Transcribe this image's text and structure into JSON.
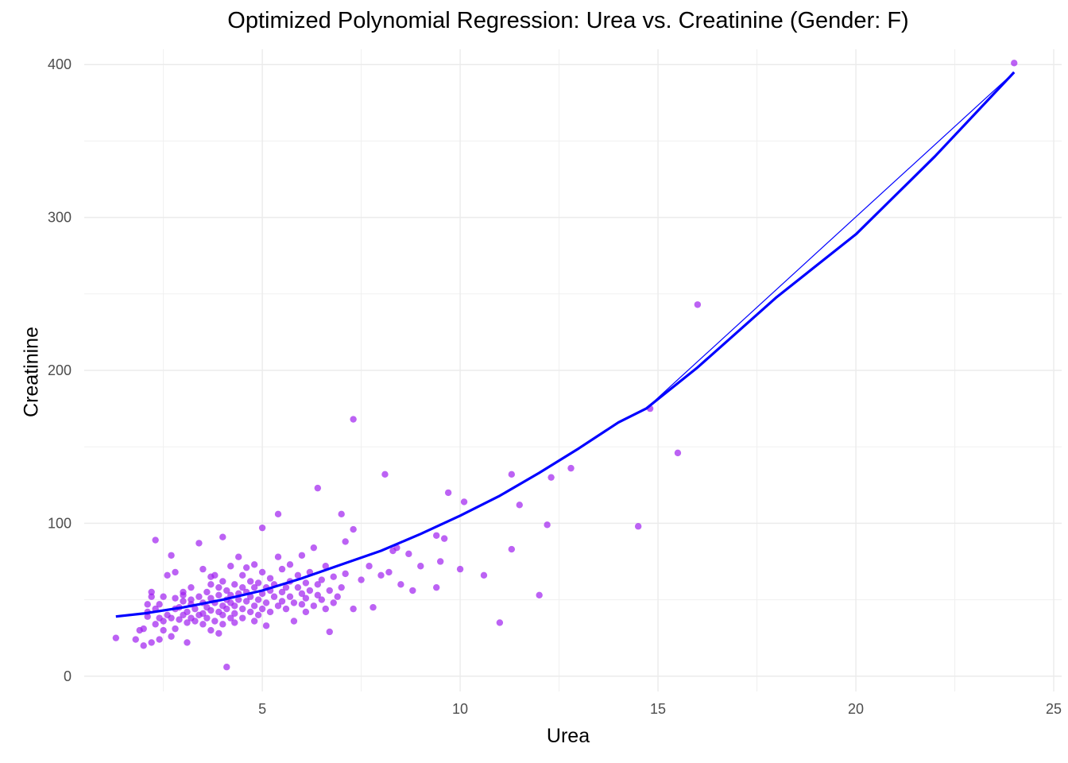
{
  "chart_data": {
    "type": "scatter",
    "title": "Optimized Polynomial Regression: Urea vs. Creatinine (Gender: F)",
    "xlabel": "Urea",
    "ylabel": "Creatinine",
    "xlim": [
      0.5,
      25.2
    ],
    "ylim": [
      -10,
      410
    ],
    "x_ticks": [
      5,
      10,
      15,
      20,
      25
    ],
    "y_ticks": [
      0,
      100,
      200,
      300,
      400
    ],
    "grid": true,
    "point_color": "#a020f0",
    "line_color": "#0000ff",
    "series": [
      {
        "type": "scatter",
        "points": [
          [
            1.3,
            25
          ],
          [
            1.8,
            24
          ],
          [
            1.9,
            30
          ],
          [
            2.0,
            20
          ],
          [
            2.0,
            31
          ],
          [
            2.1,
            47
          ],
          [
            2.1,
            39
          ],
          [
            2.1,
            42
          ],
          [
            2.2,
            22
          ],
          [
            2.2,
            52
          ],
          [
            2.2,
            55
          ],
          [
            2.3,
            34
          ],
          [
            2.3,
            44
          ],
          [
            2.3,
            89
          ],
          [
            2.4,
            24
          ],
          [
            2.4,
            38
          ],
          [
            2.4,
            47
          ],
          [
            2.5,
            36
          ],
          [
            2.5,
            52
          ],
          [
            2.5,
            30
          ],
          [
            2.6,
            40
          ],
          [
            2.6,
            66
          ],
          [
            2.7,
            26
          ],
          [
            2.7,
            38
          ],
          [
            2.7,
            79
          ],
          [
            2.8,
            31
          ],
          [
            2.8,
            44
          ],
          [
            2.8,
            51
          ],
          [
            2.8,
            68
          ],
          [
            2.9,
            37
          ],
          [
            2.9,
            45
          ],
          [
            3.0,
            40
          ],
          [
            3.0,
            49
          ],
          [
            3.0,
            53
          ],
          [
            3.0,
            55
          ],
          [
            3.1,
            35
          ],
          [
            3.1,
            22
          ],
          [
            3.1,
            42
          ],
          [
            3.2,
            50
          ],
          [
            3.2,
            47
          ],
          [
            3.2,
            38
          ],
          [
            3.2,
            58
          ],
          [
            3.3,
            44
          ],
          [
            3.3,
            36
          ],
          [
            3.4,
            52
          ],
          [
            3.4,
            40
          ],
          [
            3.4,
            87
          ],
          [
            3.5,
            48
          ],
          [
            3.5,
            34
          ],
          [
            3.5,
            41
          ],
          [
            3.5,
            70
          ],
          [
            3.6,
            45
          ],
          [
            3.6,
            38
          ],
          [
            3.6,
            55
          ],
          [
            3.7,
            51
          ],
          [
            3.7,
            60
          ],
          [
            3.7,
            43
          ],
          [
            3.7,
            65
          ],
          [
            3.7,
            30
          ],
          [
            3.8,
            36
          ],
          [
            3.8,
            48
          ],
          [
            3.8,
            66
          ],
          [
            3.9,
            42
          ],
          [
            3.9,
            58
          ],
          [
            3.9,
            28
          ],
          [
            3.9,
            53
          ],
          [
            4.0,
            46
          ],
          [
            4.0,
            40
          ],
          [
            4.0,
            62
          ],
          [
            4.0,
            34
          ],
          [
            4.0,
            91
          ],
          [
            4.1,
            50
          ],
          [
            4.1,
            44
          ],
          [
            4.1,
            56
          ],
          [
            4.1,
            6
          ],
          [
            4.2,
            38
          ],
          [
            4.2,
            53
          ],
          [
            4.2,
            48
          ],
          [
            4.2,
            72
          ],
          [
            4.3,
            41
          ],
          [
            4.3,
            60
          ],
          [
            4.3,
            46
          ],
          [
            4.3,
            35
          ],
          [
            4.4,
            54
          ],
          [
            4.4,
            50
          ],
          [
            4.4,
            78
          ],
          [
            4.5,
            44
          ],
          [
            4.5,
            58
          ],
          [
            4.5,
            66
          ],
          [
            4.5,
            38
          ],
          [
            4.6,
            49
          ],
          [
            4.6,
            55
          ],
          [
            4.6,
            71
          ],
          [
            4.7,
            42
          ],
          [
            4.7,
            52
          ],
          [
            4.7,
            62
          ],
          [
            4.8,
            46
          ],
          [
            4.8,
            58
          ],
          [
            4.8,
            36
          ],
          [
            4.8,
            73
          ],
          [
            4.9,
            50
          ],
          [
            4.9,
            61
          ],
          [
            4.9,
            40
          ],
          [
            5.0,
            54
          ],
          [
            5.0,
            44
          ],
          [
            5.0,
            97
          ],
          [
            5.0,
            68
          ],
          [
            5.1,
            48
          ],
          [
            5.1,
            58
          ],
          [
            5.1,
            33
          ],
          [
            5.2,
            56
          ],
          [
            5.2,
            42
          ],
          [
            5.2,
            64
          ],
          [
            5.3,
            52
          ],
          [
            5.3,
            60
          ],
          [
            5.4,
            46
          ],
          [
            5.4,
            78
          ],
          [
            5.4,
            106
          ],
          [
            5.5,
            55
          ],
          [
            5.5,
            70
          ],
          [
            5.5,
            49
          ],
          [
            5.6,
            58
          ],
          [
            5.6,
            44
          ],
          [
            5.7,
            62
          ],
          [
            5.7,
            52
          ],
          [
            5.7,
            73
          ],
          [
            5.8,
            48
          ],
          [
            5.8,
            36
          ],
          [
            5.9,
            58
          ],
          [
            5.9,
            66
          ],
          [
            6.0,
            47
          ],
          [
            6.0,
            54
          ],
          [
            6.0,
            79
          ],
          [
            6.1,
            51
          ],
          [
            6.1,
            61
          ],
          [
            6.1,
            42
          ],
          [
            6.2,
            56
          ],
          [
            6.2,
            68
          ],
          [
            6.3,
            46
          ],
          [
            6.3,
            84
          ],
          [
            6.4,
            53
          ],
          [
            6.4,
            60
          ],
          [
            6.4,
            123
          ],
          [
            6.5,
            50
          ],
          [
            6.5,
            63
          ],
          [
            6.6,
            44
          ],
          [
            6.6,
            72
          ],
          [
            6.7,
            56
          ],
          [
            6.7,
            29
          ],
          [
            6.8,
            65
          ],
          [
            6.8,
            48
          ],
          [
            6.9,
            52
          ],
          [
            7.0,
            58
          ],
          [
            7.0,
            106
          ],
          [
            7.1,
            88
          ],
          [
            7.1,
            67
          ],
          [
            7.3,
            96
          ],
          [
            7.3,
            44
          ],
          [
            7.3,
            168
          ],
          [
            7.5,
            63
          ],
          [
            7.7,
            72
          ],
          [
            7.8,
            45
          ],
          [
            8.0,
            66
          ],
          [
            8.1,
            132
          ],
          [
            8.2,
            68
          ],
          [
            8.3,
            82
          ],
          [
            8.4,
            84
          ],
          [
            8.5,
            60
          ],
          [
            8.7,
            80
          ],
          [
            8.8,
            56
          ],
          [
            9.0,
            72
          ],
          [
            9.4,
            92
          ],
          [
            9.4,
            58
          ],
          [
            9.5,
            75
          ],
          [
            9.6,
            90
          ],
          [
            9.7,
            120
          ],
          [
            10.0,
            70
          ],
          [
            10.1,
            114
          ],
          [
            10.6,
            66
          ],
          [
            11.0,
            35
          ],
          [
            11.3,
            132
          ],
          [
            11.3,
            83
          ],
          [
            11.5,
            112
          ],
          [
            12.0,
            53
          ],
          [
            12.2,
            99
          ],
          [
            12.3,
            130
          ],
          [
            12.8,
            136
          ],
          [
            14.5,
            98
          ],
          [
            14.8,
            175
          ],
          [
            15.5,
            146
          ],
          [
            16.0,
            243
          ],
          [
            24.0,
            401
          ]
        ]
      },
      {
        "type": "line",
        "points": [
          [
            1.3,
            39
          ],
          [
            2.0,
            41
          ],
          [
            3.0,
            45
          ],
          [
            4.0,
            50
          ],
          [
            5.0,
            56
          ],
          [
            6.0,
            64
          ],
          [
            7.0,
            73
          ],
          [
            8.0,
            82
          ],
          [
            9.0,
            93
          ],
          [
            10.0,
            105
          ],
          [
            11.0,
            118
          ],
          [
            12.0,
            133
          ],
          [
            13.0,
            149
          ],
          [
            14.0,
            166
          ],
          [
            14.7,
            175
          ],
          [
            16.0,
            202
          ],
          [
            18.0,
            248
          ],
          [
            20.0,
            289
          ],
          [
            22.0,
            340
          ],
          [
            24.0,
            395
          ]
        ]
      }
    ]
  }
}
